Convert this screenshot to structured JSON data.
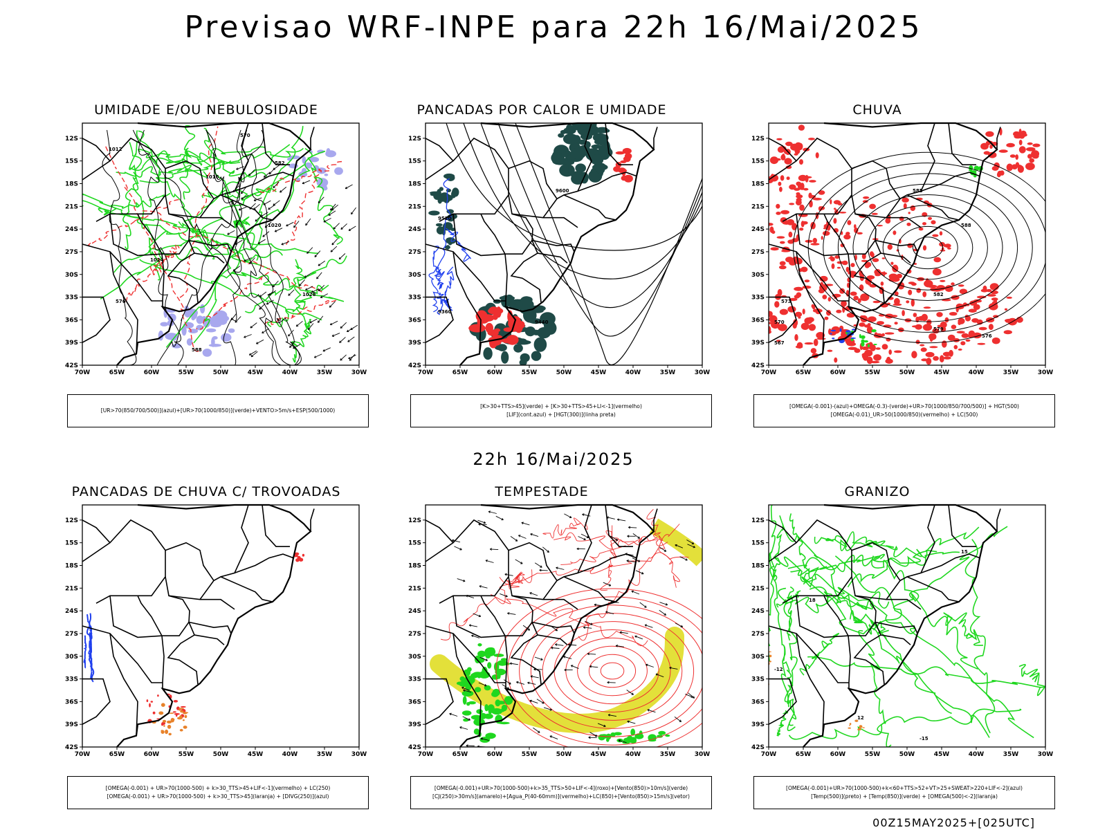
{
  "header": {
    "title": "Previsao WRF-INPE  para 22h 16/Mai/2025",
    "mid_date": "22h 16/Mai/2025",
    "run": "00Z15MAY2025+[025UTC]"
  },
  "axes": {
    "lat_labels": [
      "12S",
      "15S",
      "18S",
      "21S",
      "24S",
      "27S",
      "30S",
      "33S",
      "36S",
      "39S",
      "42S"
    ],
    "lon_labels": [
      "70W",
      "65W",
      "60W",
      "55W",
      "50W",
      "45W",
      "40W",
      "35W",
      "30W"
    ]
  },
  "colors": {
    "green": "#1fd71f",
    "red": "#ee3030",
    "blue": "#2040ee",
    "lavender": "#a8a8ee",
    "dark_teal": "#1f4a47",
    "yellow": "#e3e03a",
    "orange": "#e8822a",
    "black": "#000000"
  },
  "panels": [
    {
      "title": "UMIDADE E/OU NEBULOSIDADE",
      "legend": [
        "[UR>70(850/700/500)](azul)+[UR>70(1000/850)](verde)+VENTO>5m/s+ESP(500/1000)"
      ],
      "contour_labels": [
        "1012",
        "1016",
        "1020",
        "1024",
        "1028",
        "570",
        "576",
        "582",
        "588"
      ]
    },
    {
      "title": "PANCADAS POR CALOR E UMIDADE",
      "legend": [
        "[K>30+TTS>45](verde)  +  [K>30+TTS>45+LI<-1](vermelho)",
        "[LIF](cont.azul)  +  [HGT(300)](linha preta)"
      ],
      "contour_labels": [
        "9600",
        "9520",
        "9440",
        "9360"
      ]
    },
    {
      "title": "CHUVA",
      "legend": [
        "[OMEGA(-0.001)-(azul)+OMEGA(-0.3)-(verde)+UR>70(1000/850/700/500)]  +  HGT(500)",
        "[OMEGA(-0.01)_UR>50(1000/850)(vermelho)  +  LC(500)"
      ],
      "contour_labels": [
        "588",
        "585",
        "582",
        "579",
        "576",
        "573",
        "570",
        "567"
      ]
    },
    {
      "title": "PANCADAS DE CHUVA C/ TROVOADAS",
      "legend": [
        "[OMEGA(-0.001)  +  UR>70(1000-500)  +  k>30_TTS>45+LIF<-1](vermelho)  +  LC(250)",
        "[OMEGA(-0.001)  +  UR>70(1000-500)  +  k>30_TTS>45](laranja)  +  [DIVG(250)](azul)"
      ],
      "contour_labels": []
    },
    {
      "title": "TEMPESTADE",
      "legend": [
        "[OMEGA(-0.001)+UR>70(1000-500)+k>35_TTS>50+LIF<-4](roxo)+[Vento(850)>10m/s](verde)",
        "[CJ(250)>30m/s](amarelo)+[Agua_P(40-60mm)](vermelho)+LC(850)+[Vento(850)>15m/s](vetor)"
      ],
      "contour_labels": []
    },
    {
      "title": "GRANIZO",
      "legend": [
        "[OMEGA(-0.001)+UR>70(1000-500)+k<60+TTS>52+VT>25+SWEAT>220+LIF<-2](azul)",
        "[Temp(500)](preto)  +  [Temp(850)](verde)  +  [OMEGA(500)<-2](laranja)"
      ],
      "contour_labels": [
        "-12",
        "-15",
        "12",
        "15",
        "18"
      ]
    }
  ]
}
